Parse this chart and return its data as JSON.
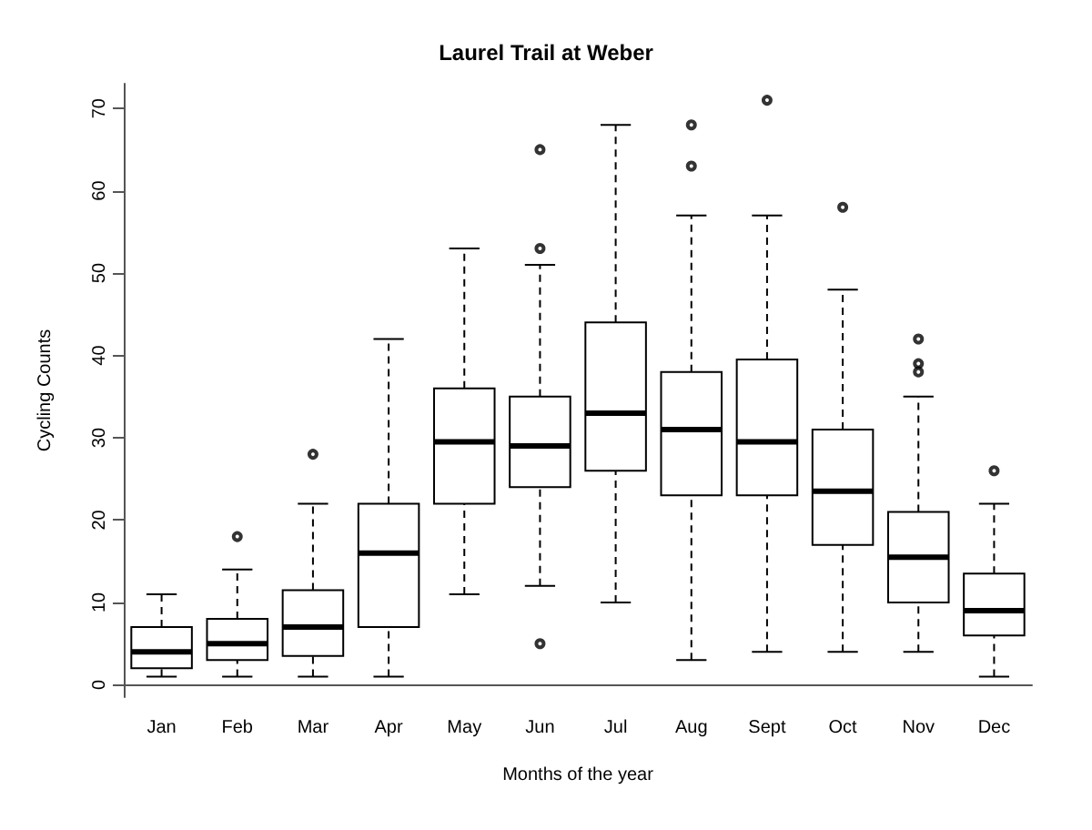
{
  "chart_data": {
    "type": "box",
    "title": "Laurel Trail at Weber",
    "xlabel": "Months of the year",
    "ylabel": "Cycling Counts",
    "categories": [
      "Jan",
      "Feb",
      "Mar",
      "Apr",
      "May",
      "Jun",
      "Jul",
      "Aug",
      "Sept",
      "Oct",
      "Nov",
      "Dec"
    ],
    "boxes": [
      {
        "low": 1,
        "q1": 2,
        "median": 4,
        "q3": 7,
        "high": 11
      },
      {
        "low": 1,
        "q1": 3,
        "median": 5,
        "q3": 8,
        "high": 14,
        "outliers": [
          18
        ]
      },
      {
        "low": 1,
        "q1": 3.5,
        "median": 7,
        "q3": 11.5,
        "high": 22,
        "outliers": [
          28
        ]
      },
      {
        "low": 1,
        "q1": 7,
        "median": 16,
        "q3": 22,
        "high": 42
      },
      {
        "low": 11,
        "q1": 22,
        "median": 29.5,
        "q3": 36,
        "high": 53
      },
      {
        "low": 12,
        "q1": 24,
        "median": 29,
        "q3": 35,
        "high": 51,
        "outliers": [
          65,
          53,
          5
        ]
      },
      {
        "low": 10,
        "q1": 26,
        "median": 33,
        "q3": 44,
        "high": 68
      },
      {
        "low": 3,
        "q1": 23,
        "median": 31,
        "q3": 38,
        "high": 57,
        "outliers": [
          68,
          63
        ]
      },
      {
        "low": 4,
        "q1": 23,
        "median": 29.5,
        "q3": 39.5,
        "high": 57,
        "outliers": [
          71
        ]
      },
      {
        "low": 4,
        "q1": 17,
        "median": 23.5,
        "q3": 31,
        "high": 48,
        "outliers": [
          58
        ]
      },
      {
        "low": 4,
        "q1": 10,
        "median": 15.5,
        "q3": 21,
        "high": 35,
        "outliers": [
          42,
          39,
          38
        ]
      },
      {
        "low": 1,
        "q1": 6,
        "median": 9,
        "q3": 13.5,
        "high": 22,
        "outliers": [
          26
        ]
      }
    ],
    "color": "#000000",
    "ylim": [
      -1.5,
      73
    ],
    "yticks": [
      0,
      10,
      20,
      30,
      40,
      50,
      60,
      70
    ],
    "grid": false
  }
}
